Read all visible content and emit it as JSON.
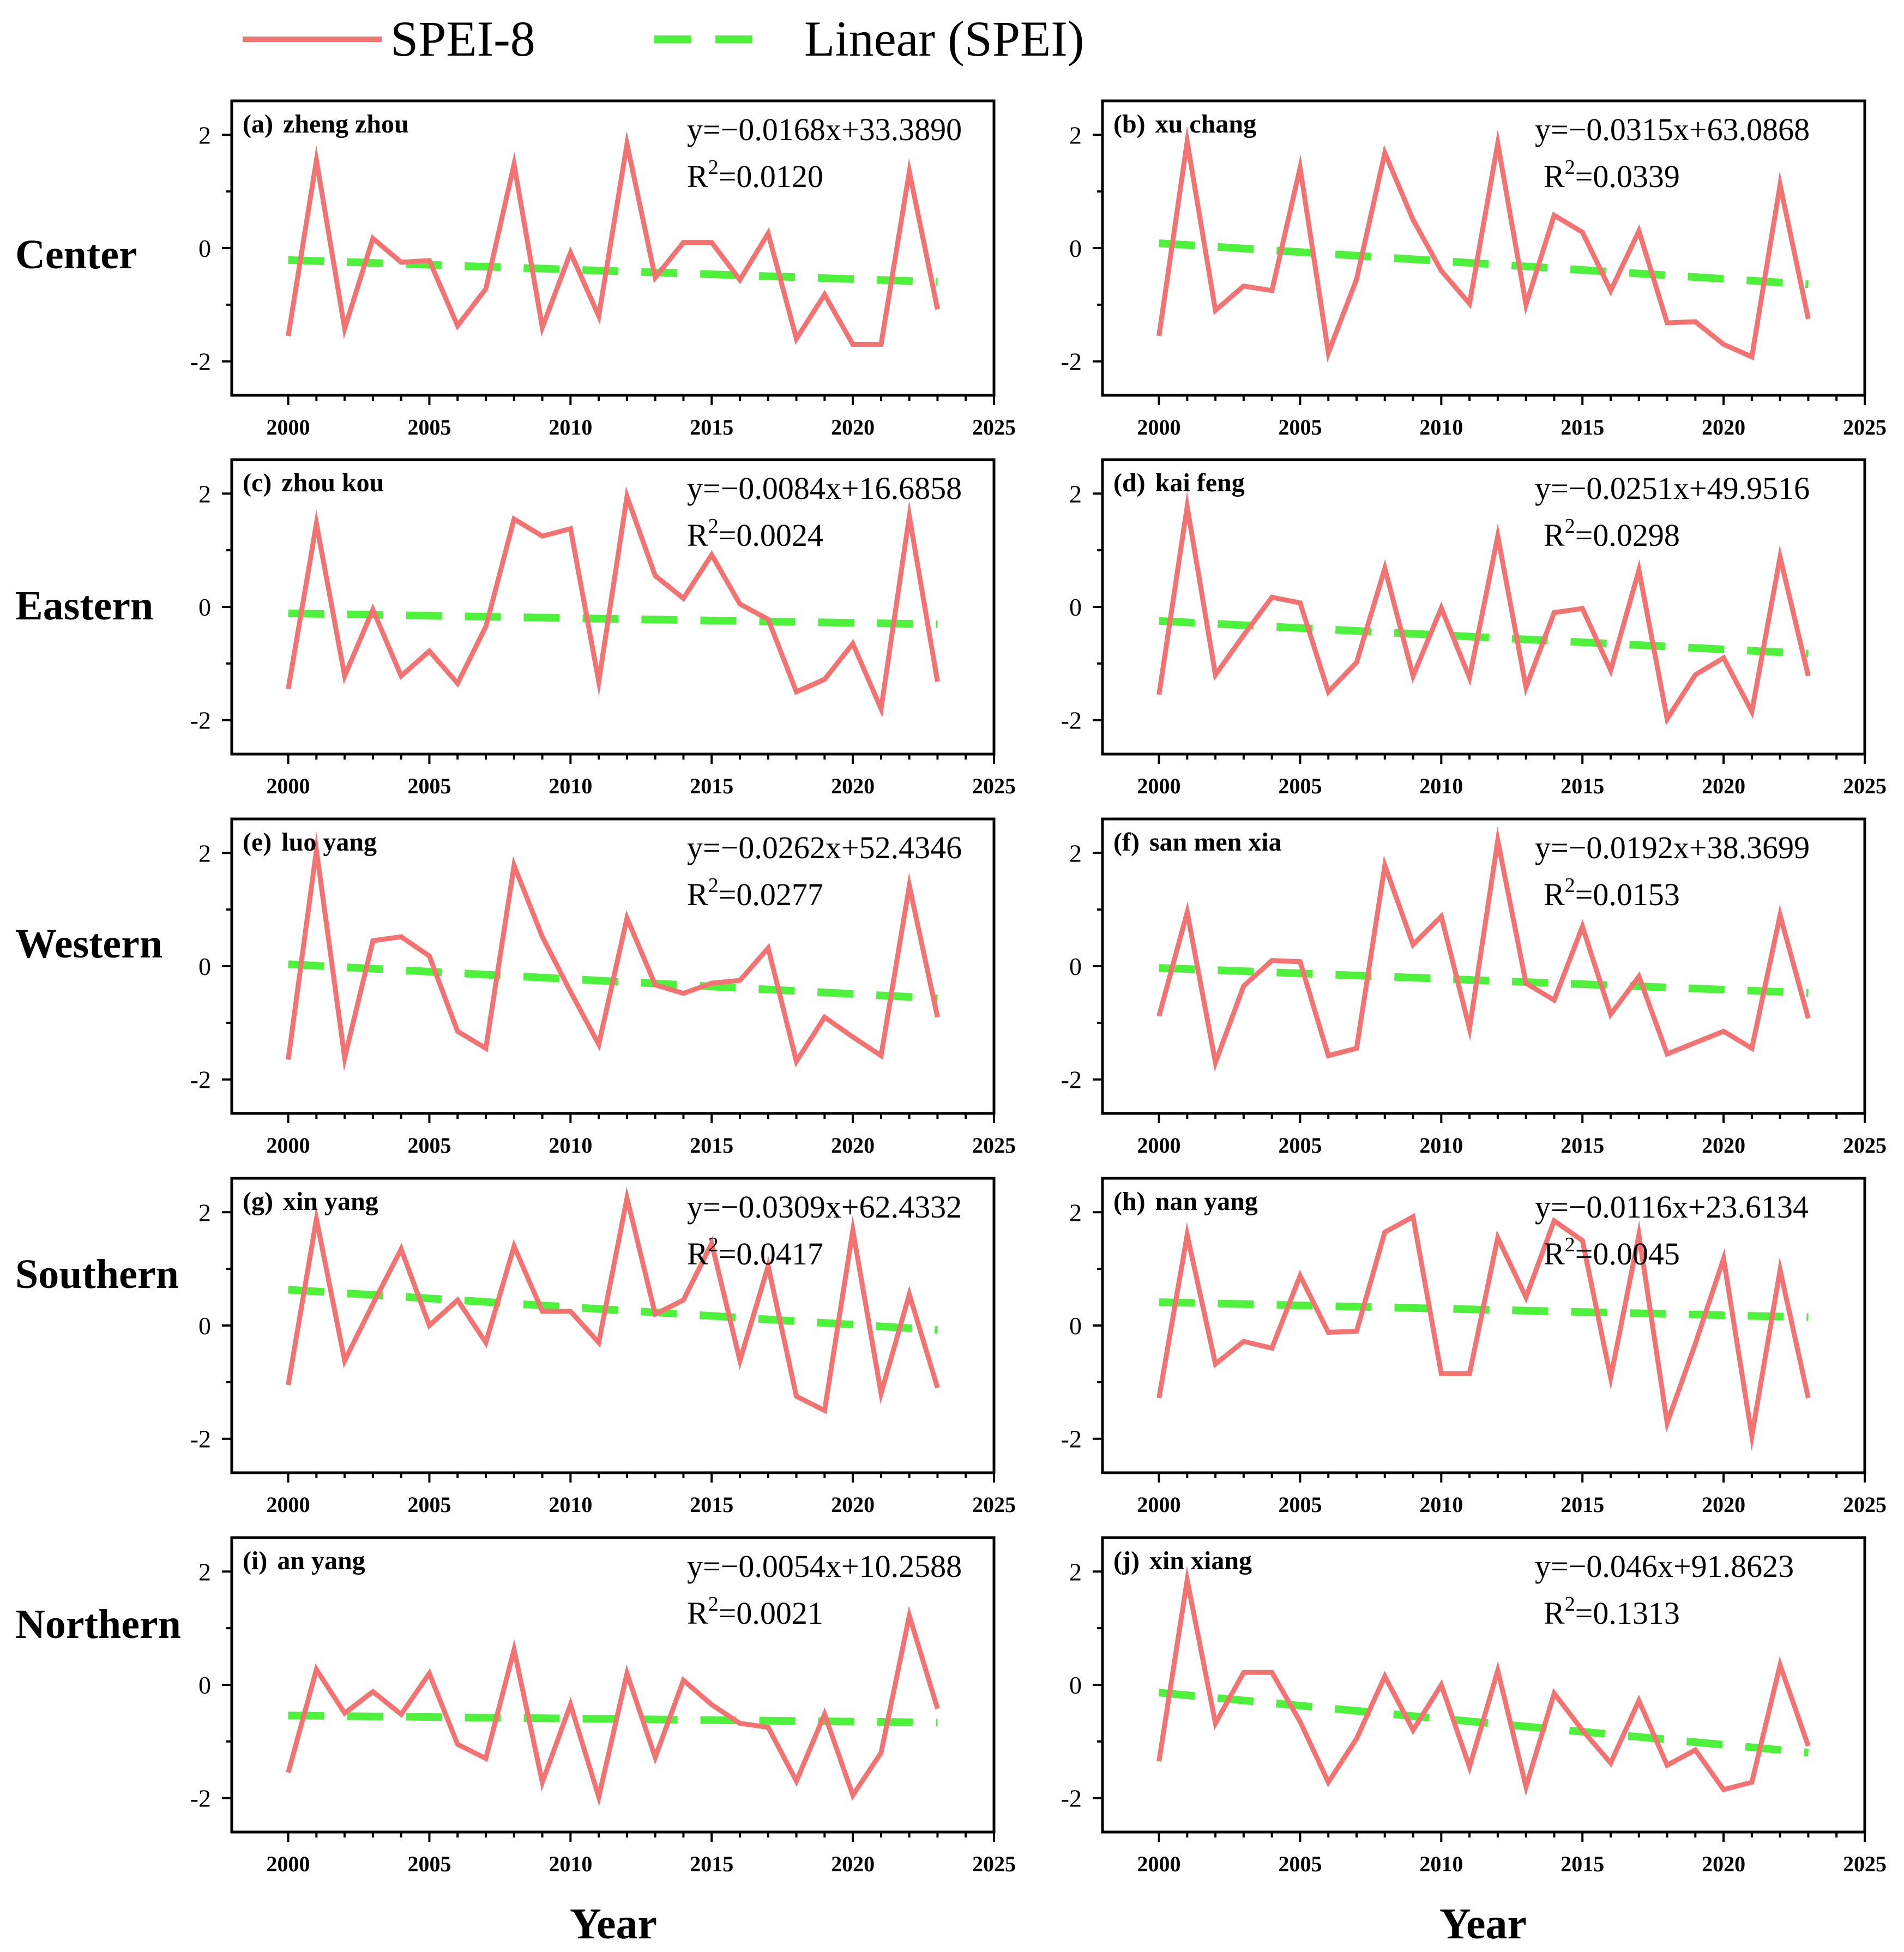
{
  "colors": {
    "series": "#f37272",
    "trend": "#4ef13c"
  },
  "legend": {
    "series_label": "SPEI-8",
    "trend_label": "Linear (SPEI)"
  },
  "regions": [
    "Center",
    "Eastern",
    "Western",
    "Southern",
    "Northern"
  ],
  "xlabels": [
    "Year",
    "Year"
  ],
  "chart_data": [
    {
      "type": "line",
      "panel": "(a)",
      "title": "zheng zhou",
      "equation": "y=−0.0168x+33.3890",
      "r2_label": "R",
      "r2_sup": "2",
      "r2_value": "=0.0120",
      "x": [
        2000,
        2001,
        2002,
        2003,
        2004,
        2005,
        2006,
        2007,
        2008,
        2009,
        2010,
        2011,
        2012,
        2013,
        2014,
        2015,
        2016,
        2017,
        2018,
        2019,
        2020,
        2021,
        2022,
        2023
      ],
      "y": [
        -1.55,
        1.55,
        -1.42,
        0.17,
        -0.25,
        -0.22,
        -1.37,
        -0.72,
        1.48,
        -1.4,
        -0.08,
        -1.2,
        1.84,
        -0.52,
        0.1,
        0.1,
        -0.56,
        0.26,
        -1.6,
        -0.82,
        -1.7,
        -1.7,
        1.35,
        -1.08
      ],
      "trend": {
        "slope": -0.0168,
        "intercept": 33.389,
        "x_range": [
          2000,
          2023
        ]
      },
      "xticks": [
        2000,
        2005,
        2010,
        2015,
        2020,
        2025
      ],
      "yticks": [
        -2,
        0,
        2
      ],
      "xlim": [
        1998,
        2025
      ],
      "ylim": [
        -2.6,
        2.6
      ]
    },
    {
      "type": "line",
      "panel": "(b)",
      "title": "xu chang",
      "equation": "y=−0.0315x+63.0868",
      "r2_label": "R",
      "r2_sup": "2",
      "r2_value": "=0.0339",
      "x": [
        2000,
        2001,
        2002,
        2003,
        2004,
        2005,
        2006,
        2007,
        2008,
        2009,
        2010,
        2011,
        2012,
        2013,
        2014,
        2015,
        2016,
        2017,
        2018,
        2019,
        2020,
        2021,
        2022,
        2023
      ],
      "y": [
        -1.55,
        1.88,
        -1.1,
        -0.67,
        -0.75,
        1.42,
        -1.85,
        -0.55,
        1.68,
        0.5,
        -0.4,
        -0.98,
        1.85,
        -1.0,
        0.58,
        0.28,
        -0.75,
        0.3,
        -1.32,
        -1.3,
        -1.7,
        -1.92,
        1.12,
        -1.25
      ],
      "trend": {
        "slope": -0.0315,
        "intercept": 63.0868,
        "x_range": [
          2000,
          2023
        ]
      },
      "xticks": [
        2000,
        2005,
        2010,
        2015,
        2020,
        2025
      ],
      "yticks": [
        -2,
        0,
        2
      ],
      "xlim": [
        1998,
        2025
      ],
      "ylim": [
        -2.6,
        2.6
      ]
    },
    {
      "type": "line",
      "panel": "(c)",
      "title": "zhou kou",
      "equation": "y=−0.0084x+16.6858",
      "r2_label": "R",
      "r2_sup": "2",
      "r2_value": "=0.0024",
      "x": [
        2000,
        2001,
        2002,
        2003,
        2004,
        2005,
        2006,
        2007,
        2008,
        2009,
        2010,
        2011,
        2012,
        2013,
        2014,
        2015,
        2016,
        2017,
        2018,
        2019,
        2020,
        2021,
        2022,
        2023
      ],
      "y": [
        -1.45,
        1.47,
        -1.22,
        -0.05,
        -1.22,
        -0.78,
        -1.35,
        -0.35,
        1.55,
        1.25,
        1.38,
        -1.32,
        1.95,
        0.55,
        0.15,
        0.92,
        0.05,
        -0.22,
        -1.5,
        -1.28,
        -0.65,
        -1.8,
        1.6,
        -1.32
      ],
      "trend": {
        "slope": -0.0084,
        "intercept": 16.6858,
        "x_range": [
          2000,
          2023
        ]
      },
      "xticks": [
        2000,
        2005,
        2010,
        2015,
        2020,
        2025
      ],
      "yticks": [
        -2,
        0,
        2
      ],
      "xlim": [
        1998,
        2025
      ],
      "ylim": [
        -2.6,
        2.6
      ]
    },
    {
      "type": "line",
      "panel": "(d)",
      "title": "kai feng",
      "equation": "y=−0.0251x+49.9516",
      "r2_label": "R",
      "r2_sup": "2",
      "r2_value": "=0.0298",
      "x": [
        2000,
        2001,
        2002,
        2003,
        2004,
        2005,
        2006,
        2007,
        2008,
        2009,
        2010,
        2011,
        2012,
        2013,
        2014,
        2015,
        2016,
        2017,
        2018,
        2019,
        2020,
        2021,
        2022,
        2023
      ],
      "y": [
        -1.55,
        1.77,
        -1.2,
        -0.5,
        0.17,
        0.07,
        -1.5,
        -0.98,
        0.68,
        -1.22,
        -0.02,
        -1.25,
        1.25,
        -1.42,
        -0.1,
        -0.03,
        -1.12,
        0.65,
        -1.98,
        -1.2,
        -0.9,
        -1.85,
        0.88,
        -1.22
      ],
      "trend": {
        "slope": -0.0251,
        "intercept": 49.9516,
        "x_range": [
          2000,
          2023
        ]
      },
      "xticks": [
        2000,
        2005,
        2010,
        2015,
        2020,
        2025
      ],
      "yticks": [
        -2,
        0,
        2
      ],
      "xlim": [
        1998,
        2025
      ],
      "ylim": [
        -2.6,
        2.6
      ]
    },
    {
      "type": "line",
      "panel": "(e)",
      "title": "luo yang",
      "equation": "y=−0.0262x+52.4346",
      "r2_label": "R",
      "r2_sup": "2",
      "r2_value": "=0.0277",
      "x": [
        2000,
        2001,
        2002,
        2003,
        2004,
        2005,
        2006,
        2007,
        2008,
        2009,
        2010,
        2011,
        2012,
        2013,
        2014,
        2015,
        2016,
        2017,
        2018,
        2019,
        2020,
        2021,
        2022,
        2023
      ],
      "y": [
        -1.65,
        2.05,
        -1.62,
        0.45,
        0.52,
        0.18,
        -1.15,
        -1.45,
        1.78,
        0.52,
        -0.45,
        -1.38,
        0.85,
        -0.33,
        -0.48,
        -0.3,
        -0.25,
        0.32,
        -1.68,
        -0.9,
        -1.25,
        -1.58,
        1.42,
        -0.9
      ],
      "trend": {
        "slope": -0.0262,
        "intercept": 52.4346,
        "x_range": [
          2000,
          2023
        ]
      },
      "xticks": [
        2000,
        2005,
        2010,
        2015,
        2020,
        2025
      ],
      "yticks": [
        -2,
        0,
        2
      ],
      "xlim": [
        1998,
        2025
      ],
      "ylim": [
        -2.6,
        2.6
      ]
    },
    {
      "type": "line",
      "panel": "(f)",
      "title": "san men xia",
      "equation": "y=−0.0192x+38.3699",
      "r2_label": "R",
      "r2_sup": "2",
      "r2_value": "=0.0153",
      "x": [
        2000,
        2001,
        2002,
        2003,
        2004,
        2005,
        2006,
        2007,
        2008,
        2009,
        2010,
        2011,
        2012,
        2013,
        2014,
        2015,
        2016,
        2017,
        2018,
        2019,
        2020,
        2021,
        2022,
        2023
      ],
      "y": [
        -0.88,
        0.95,
        -1.7,
        -0.35,
        0.1,
        0.08,
        -1.58,
        -1.45,
        1.78,
        0.38,
        0.88,
        -1.1,
        2.22,
        -0.3,
        -0.6,
        0.7,
        -0.85,
        -0.18,
        -1.55,
        -1.35,
        -1.15,
        -1.45,
        0.9,
        -0.92
      ],
      "trend": {
        "slope": -0.0192,
        "intercept": 38.3699,
        "x_range": [
          2000,
          2023
        ]
      },
      "xticks": [
        2000,
        2005,
        2010,
        2015,
        2020,
        2025
      ],
      "yticks": [
        -2,
        0,
        2
      ],
      "xlim": [
        1998,
        2025
      ],
      "ylim": [
        -2.6,
        2.6
      ]
    },
    {
      "type": "line",
      "panel": "(g)",
      "title": "xin yang",
      "equation": "y=−0.0309x+62.4332",
      "r2_label": "R",
      "r2_sup": "2",
      "r2_value": "=0.0417",
      "x": [
        2000,
        2001,
        2002,
        2003,
        2004,
        2005,
        2006,
        2007,
        2008,
        2009,
        2010,
        2011,
        2012,
        2013,
        2014,
        2015,
        2016,
        2017,
        2018,
        2019,
        2020,
        2021,
        2022,
        2023
      ],
      "y": [
        -1.05,
        1.88,
        -0.62,
        0.38,
        1.35,
        0.0,
        0.45,
        -0.3,
        1.4,
        0.25,
        0.25,
        -0.3,
        2.25,
        0.2,
        0.45,
        1.45,
        -0.62,
        1.05,
        -1.25,
        -1.5,
        1.68,
        -1.2,
        0.55,
        -1.1
      ],
      "trend": {
        "slope": -0.0309,
        "intercept": 62.4332,
        "x_range": [
          2000,
          2023
        ]
      },
      "xticks": [
        2000,
        2005,
        2010,
        2015,
        2020,
        2025
      ],
      "yticks": [
        -2,
        0,
        2
      ],
      "xlim": [
        1998,
        2025
      ],
      "ylim": [
        -2.6,
        2.6
      ]
    },
    {
      "type": "line",
      "panel": "(h)",
      "title": "nan yang",
      "equation": "y=−0.0116x+23.6134",
      "r2_label": "R",
      "r2_sup": "2",
      "r2_value": "=0.0045",
      "x": [
        2000,
        2001,
        2002,
        2003,
        2004,
        2005,
        2006,
        2007,
        2008,
        2009,
        2010,
        2011,
        2012,
        2013,
        2014,
        2015,
        2016,
        2017,
        2018,
        2019,
        2020,
        2021,
        2022,
        2023
      ],
      "y": [
        -1.28,
        1.6,
        -0.68,
        -0.28,
        -0.4,
        0.88,
        -0.12,
        -0.1,
        1.65,
        1.92,
        -0.85,
        -0.85,
        1.55,
        0.5,
        1.85,
        1.5,
        -0.92,
        1.6,
        -1.72,
        -0.32,
        1.18,
        -1.95,
        0.98,
        -1.28
      ],
      "trend": {
        "slope": -0.0116,
        "intercept": 23.6134,
        "x_range": [
          2000,
          2023
        ]
      },
      "xticks": [
        2000,
        2005,
        2010,
        2015,
        2020,
        2025
      ],
      "yticks": [
        -2,
        0,
        2
      ],
      "xlim": [
        1998,
        2025
      ],
      "ylim": [
        -2.6,
        2.6
      ]
    },
    {
      "type": "line",
      "panel": "(i)",
      "title": "an yang",
      "equation": "y=−0.0054x+10.2588",
      "r2_label": "R",
      "r2_sup": "2",
      "r2_value": "=0.0021",
      "x": [
        2000,
        2001,
        2002,
        2003,
        2004,
        2005,
        2006,
        2007,
        2008,
        2009,
        2010,
        2011,
        2012,
        2013,
        2014,
        2015,
        2016,
        2017,
        2018,
        2019,
        2020,
        2021,
        2022,
        2023
      ],
      "y": [
        -1.55,
        0.27,
        -0.5,
        -0.12,
        -0.52,
        0.2,
        -1.05,
        -1.3,
        0.62,
        -1.72,
        -0.35,
        -1.98,
        0.2,
        -1.28,
        0.08,
        -0.35,
        -0.68,
        -0.75,
        -1.7,
        -0.52,
        -1.95,
        -1.2,
        1.22,
        -0.42
      ],
      "trend": {
        "slope": -0.0054,
        "intercept": 10.2588,
        "x_range": [
          2000,
          2023
        ]
      },
      "xticks": [
        2000,
        2005,
        2010,
        2015,
        2020,
        2025
      ],
      "yticks": [
        -2,
        0,
        2
      ],
      "xlim": [
        1998,
        2025
      ],
      "ylim": [
        -2.6,
        2.6
      ]
    },
    {
      "type": "line",
      "panel": "(j)",
      "title": "xin xiang",
      "equation": "y=−0.046x+91.8623",
      "r2_label": "R",
      "r2_sup": "2",
      "r2_value": "=0.1313",
      "x": [
        2000,
        2001,
        2002,
        2003,
        2004,
        2005,
        2006,
        2007,
        2008,
        2009,
        2010,
        2011,
        2012,
        2013,
        2014,
        2015,
        2016,
        2017,
        2018,
        2019,
        2020,
        2021,
        2022,
        2023
      ],
      "y": [
        -1.35,
        1.85,
        -0.68,
        0.22,
        0.22,
        -0.65,
        -1.72,
        -0.95,
        0.15,
        -0.8,
        0.0,
        -1.45,
        0.25,
        -1.8,
        -0.15,
        -0.8,
        -1.38,
        -0.28,
        -1.42,
        -1.15,
        -1.85,
        -1.72,
        0.35,
        -1.08
      ],
      "trend": {
        "slope": -0.046,
        "intercept": 91.8623,
        "x_range": [
          2000,
          2023
        ]
      },
      "xticks": [
        2000,
        2005,
        2010,
        2015,
        2020,
        2025
      ],
      "yticks": [
        -2,
        0,
        2
      ],
      "xlim": [
        1998,
        2025
      ],
      "ylim": [
        -2.6,
        2.6
      ]
    }
  ]
}
